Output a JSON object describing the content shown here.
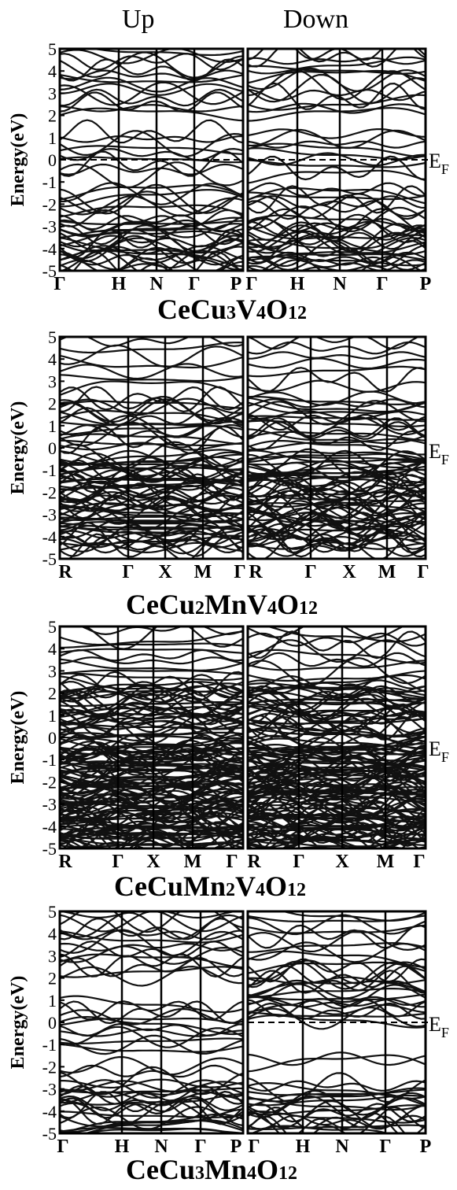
{
  "headers": {
    "up": "Up",
    "down": "Down"
  },
  "chart_data": [
    {
      "type": "line",
      "title": "CeCu3V4O12",
      "title_parts": [
        [
          "CeCu",
          ""
        ],
        [
          "3",
          "sub"
        ],
        [
          "V",
          ""
        ],
        [
          "4",
          "sub"
        ],
        [
          "O",
          ""
        ],
        [
          "12",
          "sub"
        ]
      ],
      "ylabel": "Energy(eV)",
      "ylim": [
        -5,
        5
      ],
      "yticks": [
        "-5",
        "-4",
        "-3",
        "-2",
        "-1",
        "0",
        "1",
        "2",
        "3",
        "4",
        "5"
      ],
      "fermi_label": "E",
      "fermi_sub": "F",
      "fermi_line_panels": [
        "up",
        "down"
      ],
      "kpath": [
        "Γ",
        "H",
        "N",
        "Γ",
        "P"
      ],
      "band_regions": {
        "up": [
          [
            -5.0,
            -2.6,
            3.4
          ],
          [
            -2.3,
            -1.3,
            2.2
          ],
          [
            -0.8,
            1.3,
            1.4
          ],
          [
            2.0,
            5.0,
            1.6
          ]
        ],
        "down": [
          [
            -5.0,
            -2.6,
            3.4
          ],
          [
            -2.3,
            -1.3,
            2.2
          ],
          [
            -0.8,
            1.3,
            1.4
          ],
          [
            2.0,
            5.0,
            1.6
          ]
        ]
      }
    },
    {
      "type": "line",
      "title": "CeCu2MnV4O12",
      "title_parts": [
        [
          "CeCu",
          ""
        ],
        [
          "2",
          "sub"
        ],
        [
          "MnV",
          ""
        ],
        [
          "4",
          "sub"
        ],
        [
          "O",
          ""
        ],
        [
          "12",
          "sub"
        ]
      ],
      "ylabel": "Energy(eV)",
      "ylim": [
        -5,
        5
      ],
      "yticks": [
        "-5",
        "-4",
        "-3",
        "-2",
        "-1",
        "0",
        "1",
        "2",
        "3",
        "4",
        "5"
      ],
      "fermi_label": "E",
      "fermi_sub": "F",
      "fermi_line_panels": [],
      "kpath": [
        "R",
        "Γ",
        "X",
        "M",
        "Γ"
      ],
      "band_regions": {
        "up": [
          [
            -4.6,
            -0.3,
            4.6
          ],
          [
            0.0,
            2.3,
            2.6
          ],
          [
            2.6,
            5.0,
            1.0
          ]
        ],
        "down": [
          [
            -4.6,
            -0.3,
            4.6
          ],
          [
            0.0,
            2.3,
            2.6
          ],
          [
            2.6,
            5.0,
            1.0
          ]
        ]
      }
    },
    {
      "type": "line",
      "title": "CeCuMn2V4O12",
      "title_parts": [
        [
          "CeCuMn",
          ""
        ],
        [
          "2",
          "sub"
        ],
        [
          "V",
          ""
        ],
        [
          "4",
          "sub"
        ],
        [
          "O",
          ""
        ],
        [
          "12",
          "sub"
        ]
      ],
      "ylabel": "Energy(eV)",
      "ylim": [
        -5,
        5
      ],
      "yticks": [
        "-5",
        "-4",
        "-3",
        "-2",
        "-1",
        "0",
        "1",
        "2",
        "3",
        "4",
        "5"
      ],
      "fermi_label": "E",
      "fermi_sub": "F",
      "fermi_line_panels": [],
      "kpath": [
        "R",
        "Γ",
        "X",
        "M",
        "Γ"
      ],
      "band_regions": {
        "up": [
          [
            -5.0,
            -0.2,
            7.0
          ],
          [
            0.0,
            2.5,
            4.5
          ],
          [
            2.6,
            5.0,
            1.4
          ]
        ],
        "down": [
          [
            -5.0,
            -0.2,
            7.0
          ],
          [
            0.0,
            2.5,
            4.5
          ],
          [
            2.6,
            5.0,
            1.4
          ]
        ]
      }
    },
    {
      "type": "line",
      "title": "CeCu3Mn4O12",
      "title_parts": [
        [
          "CeCu",
          ""
        ],
        [
          "3",
          "sub"
        ],
        [
          "Mn",
          ""
        ],
        [
          "4",
          "sub"
        ],
        [
          "O",
          ""
        ],
        [
          "12",
          "sub"
        ]
      ],
      "ylabel": "Energy(eV)",
      "ylim": [
        -5,
        5
      ],
      "yticks": [
        "-5",
        "-4",
        "-3",
        "-2",
        "-1",
        "0",
        "1",
        "2",
        "3",
        "4",
        "5"
      ],
      "fermi_label": "E",
      "fermi_sub": "F",
      "fermi_line_panels": [
        "down"
      ],
      "kpath": [
        "Γ",
        "H",
        "N",
        "Γ",
        "P"
      ],
      "band_regions": {
        "up": [
          [
            -5.0,
            -2.6,
            3.0
          ],
          [
            -2.4,
            -1.8,
            1.0
          ],
          [
            -1.3,
            0.9,
            1.8
          ],
          [
            2.0,
            5.0,
            1.8
          ]
        ],
        "down": [
          [
            -5.0,
            -2.8,
            3.0
          ],
          [
            -1.8,
            -1.6,
            0.4
          ],
          [
            0.0,
            2.6,
            2.6
          ],
          [
            2.8,
            5.0,
            1.4
          ]
        ]
      }
    }
  ]
}
